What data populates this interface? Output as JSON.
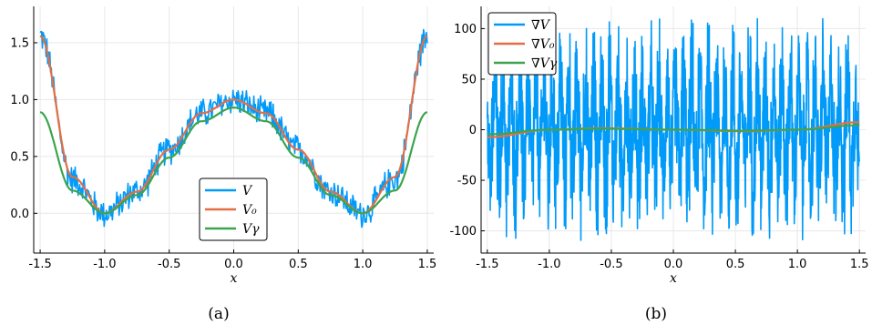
{
  "colors": {
    "V": "#009af9",
    "V0": "#e26f46",
    "Vgamma": "#3da44d",
    "grid": "#e8e8e8",
    "frame": "#000000"
  },
  "chart_data": [
    {
      "type": "line",
      "caption": "(a)",
      "xlabel": "x",
      "ylabel": "",
      "xlim": [
        -1.55,
        1.55
      ],
      "ylim": [
        -0.35,
        1.82
      ],
      "xticks": [
        -1.5,
        -1.0,
        -0.5,
        0.0,
        0.5,
        1.0,
        1.5
      ],
      "xtick_labels": [
        "-1.5",
        "-1.0",
        "-0.5",
        "0.0",
        "0.5",
        "1.0",
        "1.5"
      ],
      "yticks": [
        0.0,
        0.5,
        1.0,
        1.5
      ],
      "ytick_labels": [
        "0.0",
        "0.5",
        "1.0",
        "1.5"
      ],
      "grid": true,
      "legend_position": "bottom-center",
      "series": [
        {
          "name": "V",
          "color_key": "V",
          "noisy": true,
          "noise_amplitude": 0.15,
          "x": [
            -1.5,
            -1.25,
            -1.0,
            -0.75,
            -0.5,
            -0.25,
            0.0,
            0.25,
            0.5,
            0.75,
            1.0,
            1.25,
            1.5
          ],
          "y": [
            1.56,
            0.3,
            0.0,
            0.19,
            0.56,
            0.88,
            1.0,
            0.88,
            0.56,
            0.19,
            0.0,
            0.3,
            1.56
          ]
        },
        {
          "name": "V₀",
          "color_key": "V0",
          "noisy": false,
          "x": [
            -1.5,
            -1.25,
            -1.0,
            -0.75,
            -0.5,
            -0.25,
            0.0,
            0.25,
            0.5,
            0.75,
            1.0,
            1.25,
            1.5
          ],
          "y": [
            1.56,
            0.32,
            0.0,
            0.19,
            0.56,
            0.88,
            1.0,
            0.88,
            0.56,
            0.19,
            0.0,
            0.32,
            1.56
          ]
        },
        {
          "name": "Vγ",
          "color_key": "Vgamma",
          "noisy": false,
          "x": [
            -1.5,
            -1.25,
            -1.0,
            -0.75,
            -0.5,
            -0.25,
            0.0,
            0.25,
            0.5,
            0.75,
            1.0,
            1.25,
            1.5
          ],
          "y": [
            0.89,
            0.2,
            0.0,
            0.16,
            0.49,
            0.81,
            0.93,
            0.81,
            0.49,
            0.16,
            0.0,
            0.2,
            0.89
          ]
        }
      ]
    },
    {
      "type": "line",
      "caption": "(b)",
      "xlabel": "x",
      "ylabel": "",
      "xlim": [
        -1.55,
        1.55
      ],
      "ylim": [
        -122,
        122
      ],
      "xticks": [
        -1.5,
        -1.0,
        -0.5,
        0.0,
        0.5,
        1.0,
        1.5
      ],
      "xtick_labels": [
        "-1.5",
        "-1.0",
        "-0.5",
        "0.0",
        "0.5",
        "1.0",
        "1.5"
      ],
      "yticks": [
        -100,
        -50,
        0,
        50,
        100
      ],
      "ytick_labels": [
        "-100",
        "-50",
        "0",
        "50",
        "100"
      ],
      "grid": true,
      "legend_position": "top-left",
      "series": [
        {
          "name": "∇V",
          "color_key": "V",
          "noisy": true,
          "noise_amplitude": 100,
          "x": [
            -1.5,
            0.0,
            1.5
          ],
          "y": [
            0,
            0,
            0
          ]
        },
        {
          "name": "∇V₀",
          "color_key": "V0",
          "noisy": false,
          "x": [
            -1.5,
            -1.0,
            -0.58,
            0.0,
            0.58,
            1.0,
            1.5
          ],
          "y": [
            -7.5,
            0.0,
            1.5,
            0.0,
            -1.5,
            0.0,
            7.5
          ]
        },
        {
          "name": "∇Vγ",
          "color_key": "Vgamma",
          "noisy": false,
          "x": [
            -1.5,
            -1.0,
            -0.58,
            0.0,
            0.58,
            1.0,
            1.5
          ],
          "y": [
            -4.5,
            0.0,
            1.0,
            0.0,
            -1.0,
            0.0,
            4.5
          ]
        }
      ]
    }
  ]
}
